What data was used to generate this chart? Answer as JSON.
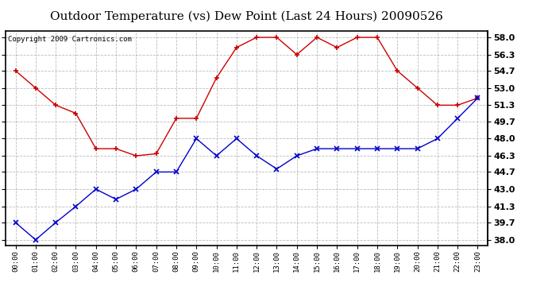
{
  "title": "Outdoor Temperature (vs) Dew Point (Last 24 Hours) 20090526",
  "copyright": "Copyright 2009 Cartronics.com",
  "x_labels": [
    "00:00",
    "01:00",
    "02:00",
    "03:00",
    "04:00",
    "05:00",
    "06:00",
    "07:00",
    "08:00",
    "09:00",
    "10:00",
    "11:00",
    "12:00",
    "13:00",
    "14:00",
    "15:00",
    "16:00",
    "17:00",
    "18:00",
    "19:00",
    "20:00",
    "21:00",
    "22:00",
    "23:00"
  ],
  "temp_red": [
    54.7,
    53.0,
    51.3,
    50.5,
    47.0,
    47.0,
    46.3,
    46.5,
    50.0,
    50.0,
    54.0,
    57.0,
    58.0,
    58.0,
    56.3,
    58.0,
    57.0,
    58.0,
    58.0,
    54.7,
    53.0,
    51.3,
    51.3,
    52.0
  ],
  "dew_blue": [
    39.7,
    38.0,
    39.7,
    41.3,
    43.0,
    42.0,
    43.0,
    44.7,
    44.7,
    48.0,
    46.3,
    48.0,
    46.3,
    45.0,
    46.3,
    47.0,
    47.0,
    47.0,
    47.0,
    47.0,
    47.0,
    48.0,
    50.0,
    52.0
  ],
  "y_ticks": [
    38.0,
    39.7,
    41.3,
    43.0,
    44.7,
    46.3,
    48.0,
    49.7,
    51.3,
    53.0,
    54.7,
    56.3,
    58.0
  ],
  "y_tick_labels": [
    "38.0",
    "39.7",
    "41.3",
    "43.0",
    "44.7",
    "46.3",
    "48.0",
    "49.7",
    "51.3",
    "53.0",
    "54.7",
    "56.3",
    "58.0"
  ],
  "ylim": [
    37.4,
    58.6
  ],
  "bg_color": "#ffffff",
  "plot_bg": "#ffffff",
  "grid_color": "#aaaaaa",
  "red_color": "#cc0000",
  "blue_color": "#0000cc",
  "title_fontsize": 11,
  "copyright_fontsize": 6.5
}
